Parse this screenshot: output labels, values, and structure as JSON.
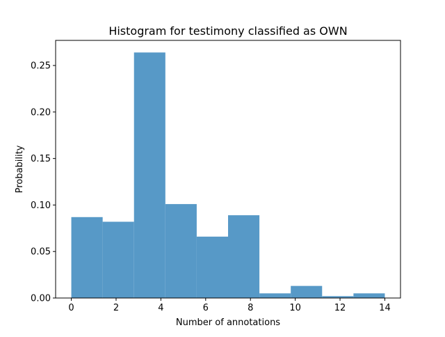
{
  "chart_data": {
    "type": "bar",
    "title": "Histogram for testimony classified as OWN",
    "xlabel": "Number of annotations",
    "ylabel": "Probability",
    "bin_edges": [
      0,
      1.4,
      2.8,
      4.2,
      5.6,
      7.0,
      8.4,
      9.8,
      11.2,
      12.6,
      14.0
    ],
    "values": [
      0.087,
      0.082,
      0.264,
      0.101,
      0.066,
      0.089,
      0.005,
      0.013,
      0.002,
      0.005
    ],
    "xlim": [
      -0.7,
      14.7
    ],
    "ylim": [
      0,
      0.277
    ],
    "xticks": [
      0,
      2,
      4,
      6,
      8,
      10,
      12,
      14
    ],
    "xtick_labels": [
      "0",
      "2",
      "4",
      "6",
      "8",
      "10",
      "12",
      "14"
    ],
    "yticks": [
      0,
      0.05,
      0.1,
      0.15,
      0.2,
      0.25
    ],
    "ytick_labels": [
      "0.00",
      "0.05",
      "0.10",
      "0.15",
      "0.20",
      "0.25"
    ],
    "bar_color": "#5799c7",
    "grid": false,
    "legend": "none"
  }
}
